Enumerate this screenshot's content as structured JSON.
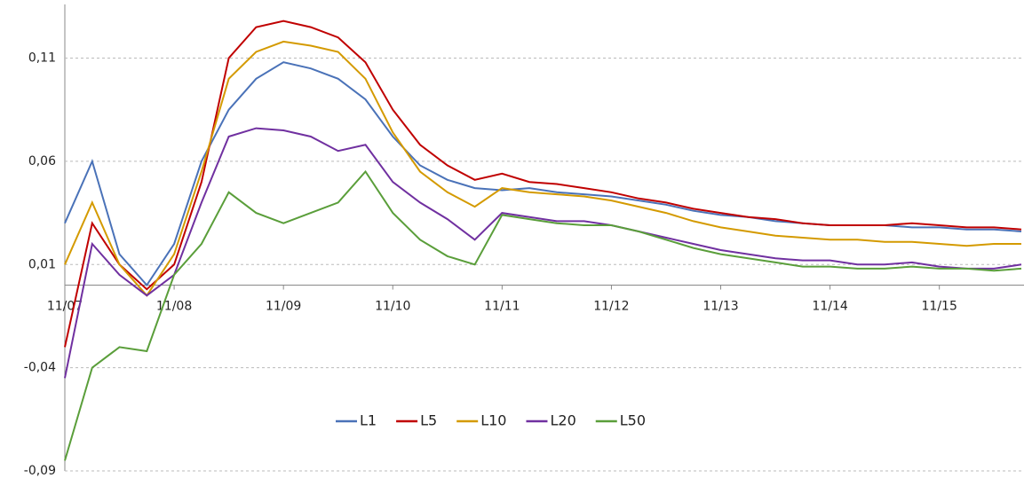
{
  "chart_data": {
    "type": "line",
    "categories": [
      "11/07",
      null,
      null,
      null,
      "11/08",
      null,
      null,
      null,
      "11/09",
      null,
      null,
      null,
      "11/10",
      null,
      null,
      null,
      "11/11",
      null,
      null,
      null,
      "11/12",
      null,
      null,
      null,
      "11/13",
      null,
      null,
      null,
      "11/14",
      null,
      null,
      null,
      "11/15",
      null,
      null,
      null
    ],
    "series": [
      {
        "name": "L1",
        "color": "#4a72b8",
        "values": [
          0.03,
          0.06,
          0.015,
          0.0,
          0.02,
          0.06,
          0.085,
          0.1,
          0.108,
          0.105,
          0.1,
          0.09,
          0.072,
          0.058,
          0.051,
          0.047,
          0.046,
          0.047,
          0.045,
          0.044,
          0.043,
          0.041,
          0.039,
          0.036,
          0.034,
          0.033,
          0.031,
          0.03,
          0.029,
          0.029,
          0.029,
          0.028,
          0.028,
          0.027,
          0.027,
          0.026
        ]
      },
      {
        "name": "L5",
        "color": "#c00000",
        "values": [
          -0.03,
          0.03,
          0.01,
          -0.002,
          0.01,
          0.05,
          0.11,
          0.125,
          0.128,
          0.125,
          0.12,
          0.108,
          0.085,
          0.068,
          0.058,
          0.051,
          0.054,
          0.05,
          0.049,
          0.047,
          0.045,
          0.042,
          0.04,
          0.037,
          0.035,
          0.033,
          0.032,
          0.03,
          0.029,
          0.029,
          0.029,
          0.03,
          0.029,
          0.028,
          0.028,
          0.027
        ]
      },
      {
        "name": "L10",
        "color": "#d49a00",
        "values": [
          0.01,
          0.04,
          0.01,
          -0.005,
          0.015,
          0.055,
          0.1,
          0.113,
          0.118,
          0.116,
          0.113,
          0.1,
          0.074,
          0.055,
          0.045,
          0.038,
          0.047,
          0.045,
          0.044,
          0.043,
          0.041,
          0.038,
          0.035,
          0.031,
          0.028,
          0.026,
          0.024,
          0.023,
          0.022,
          0.022,
          0.021,
          0.021,
          0.02,
          0.019,
          0.02,
          0.02
        ]
      },
      {
        "name": "L20",
        "color": "#7030a0",
        "values": [
          -0.045,
          0.02,
          0.005,
          -0.005,
          0.005,
          0.04,
          0.072,
          0.076,
          0.075,
          0.072,
          0.065,
          0.068,
          0.05,
          0.04,
          0.032,
          0.022,
          0.035,
          0.033,
          0.031,
          0.031,
          0.029,
          0.026,
          0.023,
          0.02,
          0.017,
          0.015,
          0.013,
          0.012,
          0.012,
          0.01,
          0.01,
          0.011,
          0.009,
          0.008,
          0.008,
          0.01
        ]
      },
      {
        "name": "L50",
        "color": "#5a9e3a",
        "values": [
          -0.085,
          -0.04,
          -0.03,
          -0.032,
          0.005,
          0.02,
          0.045,
          0.035,
          0.03,
          0.035,
          0.04,
          0.055,
          0.035,
          0.022,
          0.014,
          0.01,
          0.034,
          0.032,
          0.03,
          0.029,
          0.029,
          0.026,
          0.022,
          0.018,
          0.015,
          0.013,
          0.011,
          0.009,
          0.009,
          0.008,
          0.008,
          0.009,
          0.008,
          0.008,
          0.007,
          0.008
        ]
      }
    ],
    "ylim": [
      -0.09,
      0.136
    ],
    "yticks": [
      {
        "value": -0.09,
        "label": "-0,09"
      },
      {
        "value": -0.04,
        "label": "-0,04"
      },
      {
        "value": 0.01,
        "label": "0,01"
      },
      {
        "value": 0.06,
        "label": "0,06"
      },
      {
        "value": 0.11,
        "label": "0,11"
      }
    ],
    "grid": true,
    "legend": "bottom"
  }
}
